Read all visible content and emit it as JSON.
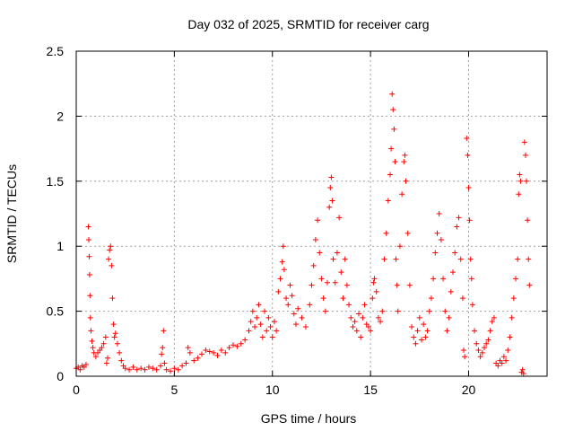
{
  "chart_data": {
    "type": "scatter",
    "title": "Day 032 of 2025, SRMTID for receiver carg",
    "xlabel": "GPS time / hours",
    "ylabel": "SRMTID / TECUs",
    "xlim": [
      0,
      24
    ],
    "ylim": [
      0,
      2.5
    ],
    "xticks": [
      0,
      5,
      10,
      15,
      20
    ],
    "xtick_labels": [
      "0",
      "5",
      "10",
      "15",
      "20"
    ],
    "yticks": [
      0,
      0.5,
      1,
      1.5,
      2,
      2.5
    ],
    "ytick_labels": [
      "0",
      "0.5",
      "1",
      "1.5",
      "2",
      "2.5"
    ],
    "grid": true,
    "marker": "+",
    "color": "#ff0000",
    "series": [
      {
        "name": "SRMTID",
        "points": [
          [
            0.0,
            0.06
          ],
          [
            0.1,
            0.07
          ],
          [
            0.2,
            0.05
          ],
          [
            0.3,
            0.08
          ],
          [
            0.4,
            0.07
          ],
          [
            0.5,
            0.09
          ],
          [
            0.62,
            1.15
          ],
          [
            0.64,
            1.05
          ],
          [
            0.66,
            0.92
          ],
          [
            0.68,
            0.78
          ],
          [
            0.7,
            0.62
          ],
          [
            0.72,
            0.45
          ],
          [
            0.75,
            0.35
          ],
          [
            0.8,
            0.27
          ],
          [
            0.85,
            0.22
          ],
          [
            0.9,
            0.18
          ],
          [
            1.0,
            0.15
          ],
          [
            1.1,
            0.18
          ],
          [
            1.2,
            0.2
          ],
          [
            1.3,
            0.22
          ],
          [
            1.4,
            0.25
          ],
          [
            1.5,
            0.3
          ],
          [
            1.55,
            0.1
          ],
          [
            1.6,
            0.14
          ],
          [
            1.65,
            0.9
          ],
          [
            1.7,
            0.97
          ],
          [
            1.75,
            1.0
          ],
          [
            1.8,
            0.85
          ],
          [
            1.85,
            0.6
          ],
          [
            1.9,
            0.4
          ],
          [
            1.95,
            0.3
          ],
          [
            2.0,
            0.33
          ],
          [
            2.1,
            0.25
          ],
          [
            2.2,
            0.18
          ],
          [
            2.3,
            0.12
          ],
          [
            2.4,
            0.08
          ],
          [
            2.5,
            0.06
          ],
          [
            2.7,
            0.05
          ],
          [
            2.9,
            0.07
          ],
          [
            3.1,
            0.05
          ],
          [
            3.3,
            0.06
          ],
          [
            3.5,
            0.05
          ],
          [
            3.7,
            0.07
          ],
          [
            3.9,
            0.06
          ],
          [
            4.1,
            0.05
          ],
          [
            4.3,
            0.08
          ],
          [
            4.35,
            0.17
          ],
          [
            4.4,
            0.22
          ],
          [
            4.45,
            0.35
          ],
          [
            4.5,
            0.1
          ],
          [
            4.6,
            0.05
          ],
          [
            4.8,
            0.04
          ],
          [
            5.0,
            0.06
          ],
          [
            5.2,
            0.05
          ],
          [
            5.4,
            0.08
          ],
          [
            5.6,
            0.1
          ],
          [
            5.7,
            0.22
          ],
          [
            5.8,
            0.18
          ],
          [
            6.0,
            0.12
          ],
          [
            6.2,
            0.14
          ],
          [
            6.4,
            0.17
          ],
          [
            6.6,
            0.2
          ],
          [
            6.8,
            0.19
          ],
          [
            7.0,
            0.18
          ],
          [
            7.2,
            0.16
          ],
          [
            7.4,
            0.2
          ],
          [
            7.6,
            0.18
          ],
          [
            7.8,
            0.22
          ],
          [
            8.0,
            0.24
          ],
          [
            8.2,
            0.23
          ],
          [
            8.4,
            0.25
          ],
          [
            8.6,
            0.28
          ],
          [
            8.8,
            0.35
          ],
          [
            8.9,
            0.42
          ],
          [
            9.0,
            0.5
          ],
          [
            9.1,
            0.38
          ],
          [
            9.2,
            0.45
          ],
          [
            9.3,
            0.55
          ],
          [
            9.4,
            0.4
          ],
          [
            9.5,
            0.3
          ],
          [
            9.6,
            0.5
          ],
          [
            9.7,
            0.35
          ],
          [
            9.8,
            0.45
          ],
          [
            9.9,
            0.38
          ],
          [
            10.0,
            0.3
          ],
          [
            10.1,
            0.42
          ],
          [
            10.2,
            0.35
          ],
          [
            10.3,
            0.65
          ],
          [
            10.4,
            0.75
          ],
          [
            10.5,
            0.88
          ],
          [
            10.55,
            1.0
          ],
          [
            10.6,
            0.82
          ],
          [
            10.7,
            0.6
          ],
          [
            10.8,
            0.55
          ],
          [
            10.9,
            0.7
          ],
          [
            11.0,
            0.62
          ],
          [
            11.1,
            0.48
          ],
          [
            11.2,
            0.4
          ],
          [
            11.3,
            0.52
          ],
          [
            11.5,
            0.45
          ],
          [
            11.7,
            0.38
          ],
          [
            11.9,
            0.55
          ],
          [
            12.0,
            0.7
          ],
          [
            12.1,
            0.85
          ],
          [
            12.2,
            1.05
          ],
          [
            12.3,
            1.2
          ],
          [
            12.4,
            0.95
          ],
          [
            12.5,
            0.75
          ],
          [
            12.6,
            0.6
          ],
          [
            12.7,
            0.5
          ],
          [
            12.8,
            0.72
          ],
          [
            12.9,
            1.3
          ],
          [
            12.95,
            1.45
          ],
          [
            13.0,
            1.53
          ],
          [
            13.05,
            1.35
          ],
          [
            13.1,
            0.9
          ],
          [
            13.2,
            0.72
          ],
          [
            13.3,
            0.95
          ],
          [
            13.4,
            1.22
          ],
          [
            13.5,
            0.8
          ],
          [
            13.6,
            0.6
          ],
          [
            13.7,
            0.9
          ],
          [
            13.8,
            0.7
          ],
          [
            13.9,
            0.55
          ],
          [
            14.0,
            0.45
          ],
          [
            14.1,
            0.38
          ],
          [
            14.2,
            0.42
          ],
          [
            14.3,
            0.35
          ],
          [
            14.4,
            0.48
          ],
          [
            14.5,
            0.3
          ],
          [
            14.6,
            0.45
          ],
          [
            14.7,
            0.55
          ],
          [
            14.8,
            0.4
          ],
          [
            14.9,
            0.38
          ],
          [
            15.0,
            0.35
          ],
          [
            15.1,
            0.6
          ],
          [
            15.15,
            0.72
          ],
          [
            15.2,
            0.75
          ],
          [
            15.3,
            0.65
          ],
          [
            15.4,
            0.45
          ],
          [
            15.5,
            0.42
          ],
          [
            15.6,
            0.5
          ],
          [
            15.7,
            0.9
          ],
          [
            15.8,
            1.1
          ],
          [
            15.9,
            1.35
          ],
          [
            16.0,
            1.55
          ],
          [
            16.05,
            1.75
          ],
          [
            16.1,
            2.17
          ],
          [
            16.15,
            2.05
          ],
          [
            16.2,
            1.9
          ],
          [
            16.25,
            1.65
          ],
          [
            16.3,
            0.9
          ],
          [
            16.35,
            0.7
          ],
          [
            16.4,
            0.5
          ],
          [
            16.5,
            1.0
          ],
          [
            16.6,
            1.4
          ],
          [
            16.7,
            1.65
          ],
          [
            16.75,
            1.7
          ],
          [
            16.8,
            1.5
          ],
          [
            16.9,
            1.1
          ],
          [
            17.0,
            0.7
          ],
          [
            17.1,
            0.38
          ],
          [
            17.2,
            0.3
          ],
          [
            17.3,
            0.25
          ],
          [
            17.4,
            0.35
          ],
          [
            17.5,
            0.45
          ],
          [
            17.6,
            0.28
          ],
          [
            17.7,
            0.4
          ],
          [
            17.8,
            0.3
          ],
          [
            17.9,
            0.35
          ],
          [
            18.0,
            0.5
          ],
          [
            18.1,
            0.6
          ],
          [
            18.2,
            0.75
          ],
          [
            18.3,
            0.95
          ],
          [
            18.4,
            1.1
          ],
          [
            18.5,
            1.25
          ],
          [
            18.6,
            1.05
          ],
          [
            18.7,
            0.75
          ],
          [
            18.8,
            0.5
          ],
          [
            18.9,
            0.35
          ],
          [
            19.0,
            0.45
          ],
          [
            19.1,
            0.65
          ],
          [
            19.2,
            0.8
          ],
          [
            19.3,
            0.95
          ],
          [
            19.4,
            1.15
          ],
          [
            19.5,
            1.22
          ],
          [
            19.6,
            0.9
          ],
          [
            19.7,
            0.6
          ],
          [
            19.75,
            0.2
          ],
          [
            19.8,
            0.15
          ],
          [
            19.9,
            1.83
          ],
          [
            19.95,
            1.7
          ],
          [
            20.0,
            1.45
          ],
          [
            20.05,
            1.2
          ],
          [
            20.1,
            0.9
          ],
          [
            20.15,
            0.75
          ],
          [
            20.2,
            0.55
          ],
          [
            20.3,
            0.35
          ],
          [
            20.4,
            0.25
          ],
          [
            20.5,
            0.2
          ],
          [
            20.6,
            0.15
          ],
          [
            20.7,
            0.18
          ],
          [
            20.8,
            0.22
          ],
          [
            20.9,
            0.25
          ],
          [
            21.0,
            0.28
          ],
          [
            21.1,
            0.35
          ],
          [
            21.2,
            0.42
          ],
          [
            21.3,
            0.45
          ],
          [
            21.4,
            0.1
          ],
          [
            21.5,
            0.08
          ],
          [
            21.6,
            0.12
          ],
          [
            21.7,
            0.1
          ],
          [
            21.8,
            0.15
          ],
          [
            21.9,
            0.12
          ],
          [
            22.0,
            0.2
          ],
          [
            22.1,
            0.3
          ],
          [
            22.2,
            0.45
          ],
          [
            22.3,
            0.6
          ],
          [
            22.4,
            0.75
          ],
          [
            22.5,
            0.9
          ],
          [
            22.55,
            1.4
          ],
          [
            22.6,
            1.55
          ],
          [
            22.65,
            1.5
          ],
          [
            22.7,
            0.03
          ],
          [
            22.75,
            0.05
          ],
          [
            22.8,
            0.02
          ],
          [
            22.85,
            1.8
          ],
          [
            22.9,
            1.7
          ],
          [
            22.95,
            1.5
          ],
          [
            23.0,
            1.2
          ],
          [
            23.05,
            0.9
          ],
          [
            23.1,
            0.7
          ]
        ]
      }
    ]
  }
}
